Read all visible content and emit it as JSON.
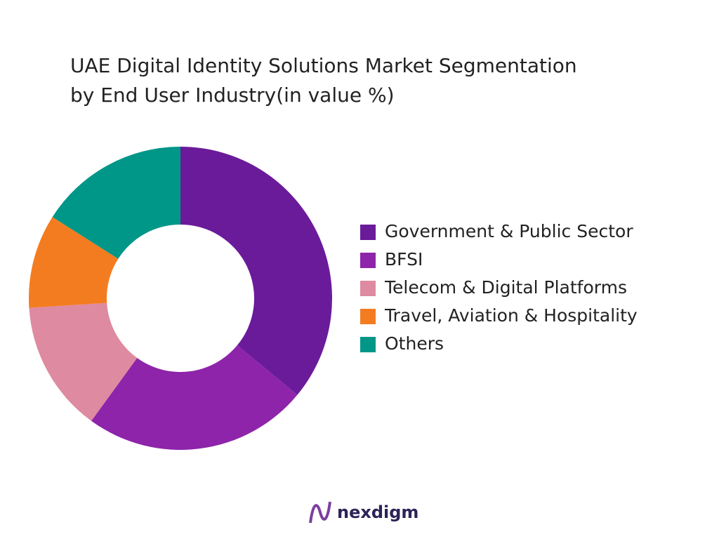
{
  "chart_data": {
    "type": "donut",
    "title": [
      "UAE Digital Identity Solutions Market Segmentation",
      "by End User Industry(in value %)"
    ],
    "categories": [
      "Government & Public Sector",
      "BFSI",
      "Telecom & Digital Platforms",
      "Travel, Aviation & Hospitality",
      "Others"
    ],
    "values": [
      36,
      24,
      14,
      10,
      16
    ],
    "colors": [
      "#6a1b9a",
      "#8e24aa",
      "#de8aa0",
      "#f47c20",
      "#009688"
    ],
    "legend": "right"
  },
  "brand": "nexdigm"
}
